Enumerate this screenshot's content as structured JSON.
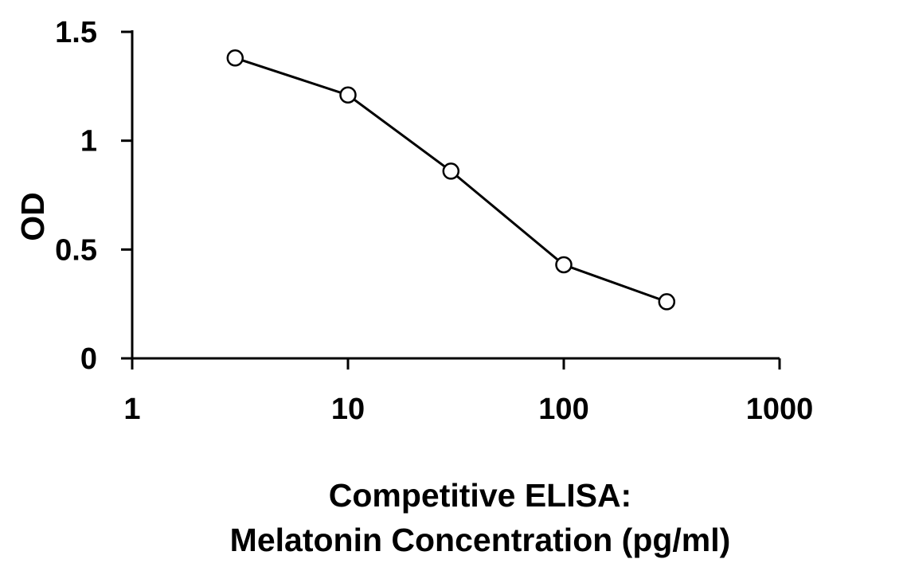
{
  "chart_data": {
    "type": "line",
    "xscale": "log",
    "x": [
      3,
      10,
      30,
      100,
      300
    ],
    "series": [
      {
        "values": [
          1.38,
          1.21,
          0.86,
          0.43,
          0.26
        ]
      }
    ],
    "xlim": [
      1,
      1000
    ],
    "ylim": [
      0,
      1.5
    ],
    "xticks": [
      "1",
      "10",
      "100",
      "1000"
    ],
    "yticks": [
      "0",
      "0.5",
      "1",
      "1.5"
    ],
    "ylabel": "OD",
    "xlabel_line1": "Competitive ELISA:",
    "xlabel_line2": "Melatonin Concentration (pg/ml)",
    "grid": false,
    "marker": "open-circle",
    "line_color": "#000000"
  }
}
